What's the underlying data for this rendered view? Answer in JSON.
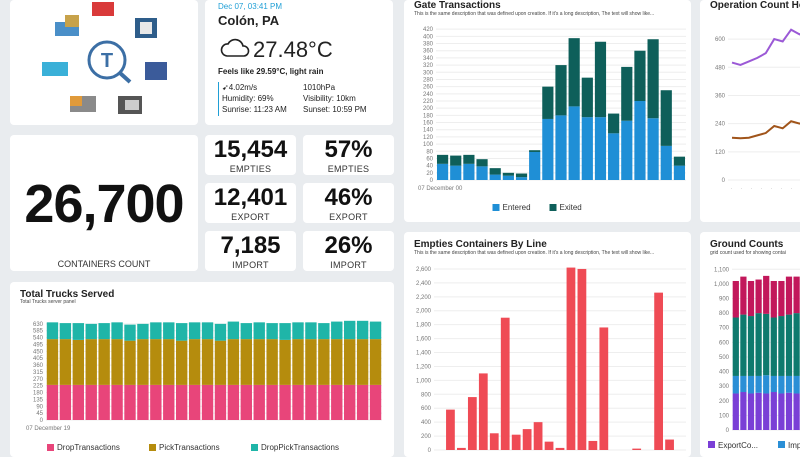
{
  "logo": {
    "caption": ""
  },
  "weather": {
    "datetime": "Dec 07, 03:41 PM",
    "location": "Colón, PA",
    "temp": "27.48°C",
    "feels": "Feels like 29.59°C, light rain",
    "wind": "4.02m/s",
    "pressure": "1010hPa",
    "humidity": "Humidity: 69%",
    "visibility": "Visibility: 10km",
    "sunrise": "Sunrise: 11:23 AM",
    "sunset": "Sunset: 10:59 PM",
    "icon": "cloud-rain-icon"
  },
  "containers": {
    "count": "26,700",
    "label": "CONTAINERS COUNT"
  },
  "stats": {
    "empties_count": "15,454",
    "empties_label": "EMPTIES",
    "empties_pct": "57%",
    "empties_pct_label": "EMPTIES",
    "export_count": "12,401",
    "export_label": "EXPORT",
    "export_pct": "46%",
    "export_pct_label": "EXPORT",
    "import_count": "7,185",
    "import_label": "IMPORT",
    "import_pct": "26%",
    "import_pct_label": "IMPORT"
  },
  "colors": {
    "entered": "#1f8fd6",
    "exited": "#0e5f5a",
    "drop": "#e8457a",
    "pick": "#b58c0d",
    "droppick": "#1fb5a8",
    "empties": "#ef4b55",
    "line_purple": "#9b59d6",
    "line_brown": "#a0541a",
    "ground_pink": "#c2185b",
    "ground_teal": "#0f7a6e",
    "ground_blue": "#2a8fd6",
    "ground_purple": "#7a3fd6"
  },
  "chart_data": [
    {
      "type": "bar",
      "title": "Gate Transactions",
      "subtitle": "This is the same description that was defined upon creation. If it's a long description, The text will show like...",
      "xtick": "07 December 00",
      "ylim": [
        0,
        440
      ],
      "yticks": [
        "0",
        "20",
        "40",
        "60",
        "80",
        "100",
        "120",
        "140",
        "160",
        "180",
        "200",
        "220",
        "240",
        "260",
        "280",
        "300",
        "320",
        "340",
        "360",
        "380",
        "400",
        "420"
      ],
      "series": [
        {
          "name": "Entered",
          "values": [
            45,
            40,
            45,
            38,
            15,
            12,
            8,
            78,
            170,
            180,
            205,
            175,
            175,
            130,
            165,
            220,
            172,
            95,
            40
          ]
        },
        {
          "name": "Exited",
          "values": [
            25,
            28,
            25,
            20,
            18,
            8,
            10,
            5,
            90,
            140,
            190,
            110,
            210,
            55,
            150,
            140,
            220,
            155,
            25
          ]
        }
      ],
      "legend": "bottom"
    },
    {
      "type": "bar",
      "title": "Total Trucks Served",
      "subtitle": "Total Trucks server panel",
      "xtick": "07 December 19",
      "ylim": [
        0,
        675
      ],
      "yticks": [
        "0",
        "45",
        "90",
        "135",
        "180",
        "225",
        "270",
        "315",
        "360",
        "405",
        "450",
        "495",
        "540",
        "585",
        "630"
      ],
      "series": [
        {
          "name": "DropTransactions",
          "values": [
            230,
            230,
            230,
            230,
            230,
            230,
            230,
            230,
            230,
            230,
            230,
            230,
            230,
            230,
            230,
            230,
            230,
            230,
            230,
            230,
            230,
            230,
            230,
            230,
            230,
            230
          ]
        },
        {
          "name": "PickTransactions",
          "values": [
            300,
            300,
            295,
            300,
            300,
            300,
            290,
            300,
            300,
            300,
            290,
            300,
            300,
            290,
            300,
            300,
            300,
            300,
            295,
            300,
            300,
            300,
            300,
            300,
            300,
            300
          ]
        },
        {
          "name": "DropPickTransactions",
          "values": [
            110,
            105,
            110,
            100,
            105,
            110,
            105,
            100,
            110,
            110,
            115,
            110,
            110,
            110,
            115,
            105,
            110,
            105,
            110,
            110,
            110,
            105,
            115,
            120,
            120,
            115
          ]
        }
      ],
      "legend": "bottom"
    },
    {
      "type": "bar",
      "title": "Empties Containers By Line",
      "subtitle": "This is the same description that was defined upon creation. If it's a long description, The text will show like...",
      "ylim": [
        0,
        2700
      ],
      "yticks": [
        "0",
        "200",
        "400",
        "600",
        "800",
        "1,000",
        "1,200",
        "1,400",
        "1,600",
        "1,800",
        "2,000",
        "2,200",
        "2,400",
        "2,600"
      ],
      "values": [
        0,
        580,
        30,
        760,
        1100,
        240,
        1900,
        220,
        300,
        400,
        120,
        30,
        2620,
        2600,
        130,
        1760,
        0,
        0,
        20,
        0,
        2260,
        150,
        0
      ]
    },
    {
      "type": "line",
      "title": "Operation Count Ho",
      "yticks": [
        "0",
        "120",
        "240",
        "360",
        "480",
        "600"
      ],
      "ylim": [
        0,
        660
      ],
      "series": [
        {
          "name": "",
          "values": [
            500,
            490,
            505,
            520,
            540,
            600,
            590,
            640,
            620,
            640
          ]
        },
        {
          "name": "",
          "values": [
            180,
            178,
            180,
            190,
            200,
            230,
            220,
            250,
            240,
            250
          ]
        }
      ]
    },
    {
      "type": "bar",
      "title": "Ground Counts",
      "subtitle": "grid count used for showing contai",
      "yticks": [
        "0",
        "100",
        "200",
        "300",
        "400",
        "500",
        "600",
        "700",
        "800",
        "900",
        "1,000",
        "1,100"
      ],
      "ylim": [
        0,
        1150
      ],
      "legend": [
        "ExportCo...",
        "Imp"
      ],
      "series": [
        {
          "name": "ExportCo...",
          "values": [
            250,
            260,
            250,
            255,
            250,
            260,
            250,
            255,
            250,
            260
          ]
        },
        {
          "name": "Imp",
          "values": [
            120,
            110,
            120,
            115,
            125,
            110,
            120,
            115,
            120,
            110
          ]
        },
        {
          "name": "",
          "values": [
            400,
            420,
            410,
            430,
            420,
            400,
            410,
            420,
            430,
            400
          ]
        },
        {
          "name": "",
          "values": [
            250,
            260,
            240,
            230,
            260,
            250,
            240,
            260,
            250,
            240
          ]
        }
      ]
    }
  ]
}
